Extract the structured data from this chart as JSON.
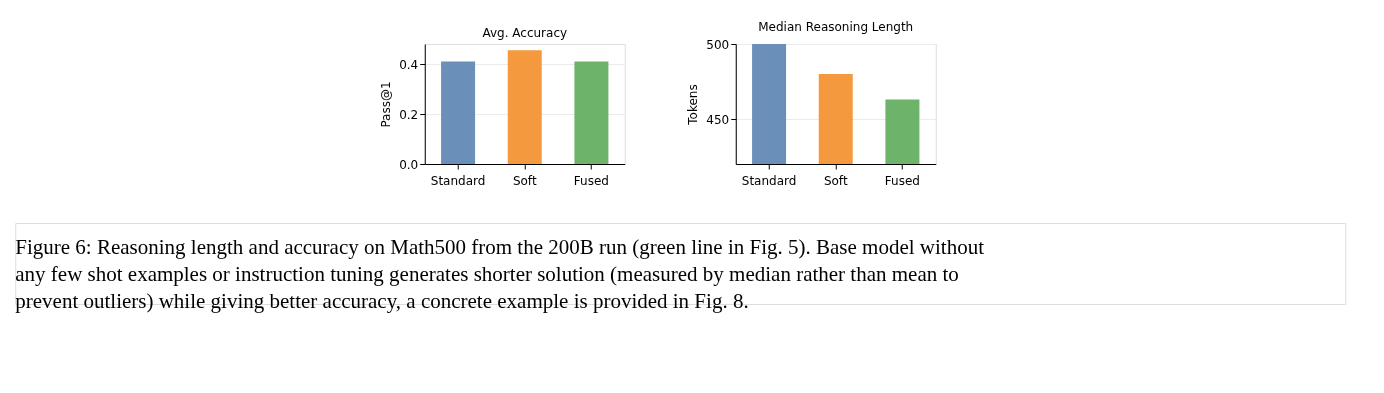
{
  "chart_data": [
    {
      "type": "bar",
      "title": "Avg. Accuracy",
      "ylabel": "Pass@1",
      "categories": [
        "Standard",
        "Soft",
        "Fused"
      ],
      "values": [
        0.41,
        0.455,
        0.41
      ],
      "colors": [
        "#6a8fb8",
        "#f5993f",
        "#6db36a"
      ],
      "ylim": [
        0,
        0.48
      ],
      "yticks": [
        {
          "value": 0,
          "label": "0.0"
        },
        0.2,
        0.4
      ],
      "grid": "y"
    },
    {
      "type": "bar",
      "title": "Median Reasoning Length",
      "ylabel": "Tokens",
      "categories": [
        "Standard",
        "Soft",
        "Fused"
      ],
      "values": [
        500,
        480,
        463
      ],
      "colors": [
        "#6a8fb8",
        "#f5993f",
        "#6db36a"
      ],
      "ylim": [
        420,
        500
      ],
      "yticks": [
        450,
        500
      ],
      "grid": "y",
      "annotations": [
        "Figure 6: Reasoning length and accuracy on Math500 from the 200B run (green line in Fig. 5). Base model without",
        "any few shot examples or instruction tuning generates shorter solution (measured by median rather than mean to",
        "prevent outliers) while giving better accuracy, a concrete example is provided in Fig. 8."
      ]
    }
  ]
}
